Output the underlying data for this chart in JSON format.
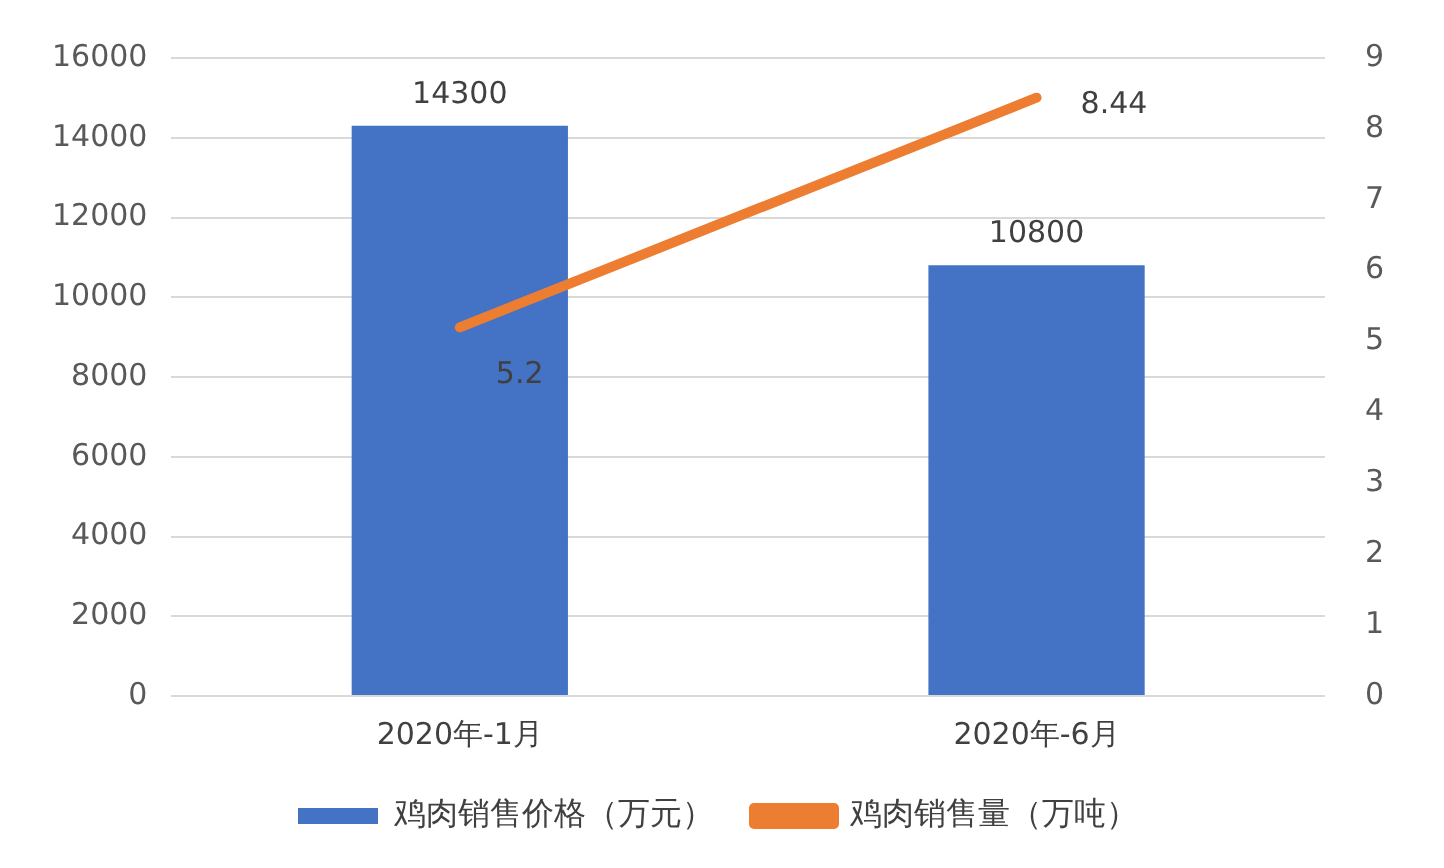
{
  "chart_data": {
    "type": "bar",
    "categories": [
      "2020年-1月",
      "2020年-6月"
    ],
    "series": [
      {
        "name": "鸡肉销售价格（万元）",
        "color": "#4472c4",
        "values": [
          14300,
          10800
        ]
      },
      {
        "name": "鸡肉销售量（万吨）",
        "type": "line",
        "axis": "y2",
        "color": "#ed7d31",
        "values": [
          5.2,
          8.44
        ]
      }
    ],
    "ylim": [
      0,
      16000
    ],
    "yticks": [
      0,
      2000,
      4000,
      6000,
      8000,
      10000,
      12000,
      14000,
      16000
    ],
    "y2lim": [
      0,
      9
    ],
    "y2ticks": [
      0,
      1,
      2,
      3,
      4,
      5,
      6,
      7,
      8,
      9
    ],
    "grid": "y",
    "legend": "bottom",
    "marker": "none",
    "data_labels": true
  }
}
